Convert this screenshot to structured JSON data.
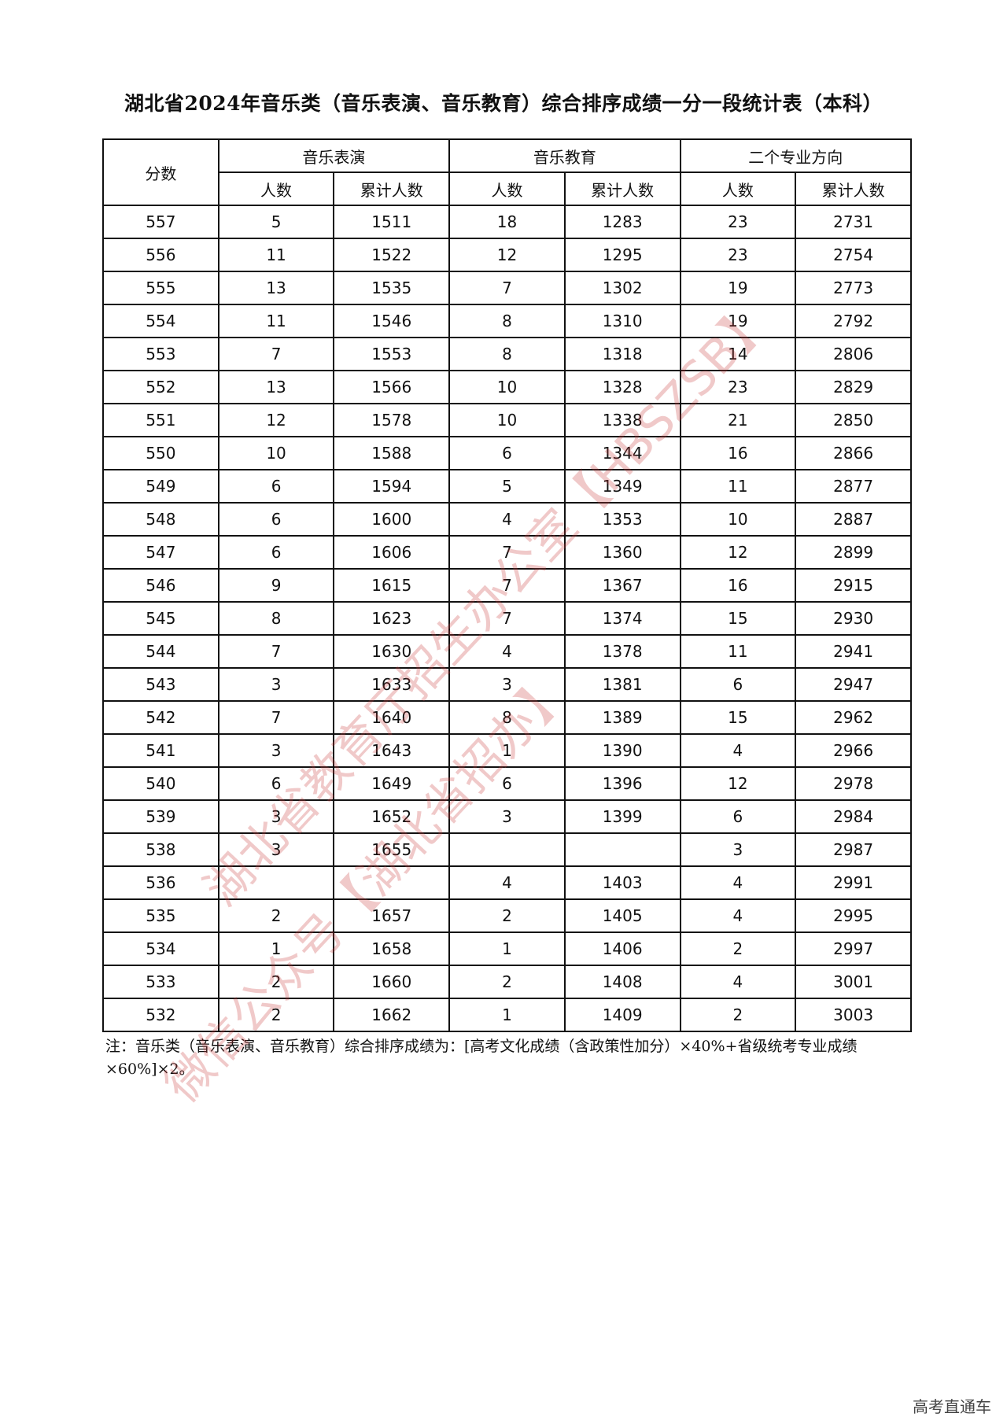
{
  "title": "湖北省2024年音乐类（音乐表演、音乐教育）综合排序成绩一分一段统计表（本科）",
  "table": {
    "score_header": "分数",
    "groups": [
      "音乐表演",
      "音乐教育",
      "二个专业方向"
    ],
    "sub_headers": [
      "人数",
      "累计人数",
      "人数",
      "累计人数",
      "人数",
      "累计人数"
    ],
    "rows": [
      [
        "557",
        "5",
        "1511",
        "18",
        "1283",
        "23",
        "2731"
      ],
      [
        "556",
        "11",
        "1522",
        "12",
        "1295",
        "23",
        "2754"
      ],
      [
        "555",
        "13",
        "1535",
        "7",
        "1302",
        "19",
        "2773"
      ],
      [
        "554",
        "11",
        "1546",
        "8",
        "1310",
        "19",
        "2792"
      ],
      [
        "553",
        "7",
        "1553",
        "8",
        "1318",
        "14",
        "2806"
      ],
      [
        "552",
        "13",
        "1566",
        "10",
        "1328",
        "23",
        "2829"
      ],
      [
        "551",
        "12",
        "1578",
        "10",
        "1338",
        "21",
        "2850"
      ],
      [
        "550",
        "10",
        "1588",
        "6",
        "1344",
        "16",
        "2866"
      ],
      [
        "549",
        "6",
        "1594",
        "5",
        "1349",
        "11",
        "2877"
      ],
      [
        "548",
        "6",
        "1600",
        "4",
        "1353",
        "10",
        "2887"
      ],
      [
        "547",
        "6",
        "1606",
        "7",
        "1360",
        "12",
        "2899"
      ],
      [
        "546",
        "9",
        "1615",
        "7",
        "1367",
        "16",
        "2915"
      ],
      [
        "545",
        "8",
        "1623",
        "7",
        "1374",
        "15",
        "2930"
      ],
      [
        "544",
        "7",
        "1630",
        "4",
        "1378",
        "11",
        "2941"
      ],
      [
        "543",
        "3",
        "1633",
        "3",
        "1381",
        "6",
        "2947"
      ],
      [
        "542",
        "7",
        "1640",
        "8",
        "1389",
        "15",
        "2962"
      ],
      [
        "541",
        "3",
        "1643",
        "1",
        "1390",
        "4",
        "2966"
      ],
      [
        "540",
        "6",
        "1649",
        "6",
        "1396",
        "12",
        "2978"
      ],
      [
        "539",
        "3",
        "1652",
        "3",
        "1399",
        "6",
        "2984"
      ],
      [
        "538",
        "3",
        "1655",
        "",
        "",
        "3",
        "2987"
      ],
      [
        "536",
        "",
        "",
        "4",
        "1403",
        "4",
        "2991"
      ],
      [
        "535",
        "2",
        "1657",
        "2",
        "1405",
        "4",
        "2995"
      ],
      [
        "534",
        "1",
        "1658",
        "1",
        "1406",
        "2",
        "2997"
      ],
      [
        "533",
        "2",
        "1660",
        "2",
        "1408",
        "4",
        "3001"
      ],
      [
        "532",
        "2",
        "1662",
        "1",
        "1409",
        "2",
        "3003"
      ]
    ]
  },
  "note": "注：音乐类（音乐表演、音乐教育）综合排序成绩为：[高考文化成绩（含政策性加分）×40%+省级统考专业成绩×60%]×2。",
  "watermarks": [
    "湖北省教育厅招生办公室【HBSZSB】",
    "微信公众号【湖北省招办】"
  ],
  "footer": "高考直通车"
}
